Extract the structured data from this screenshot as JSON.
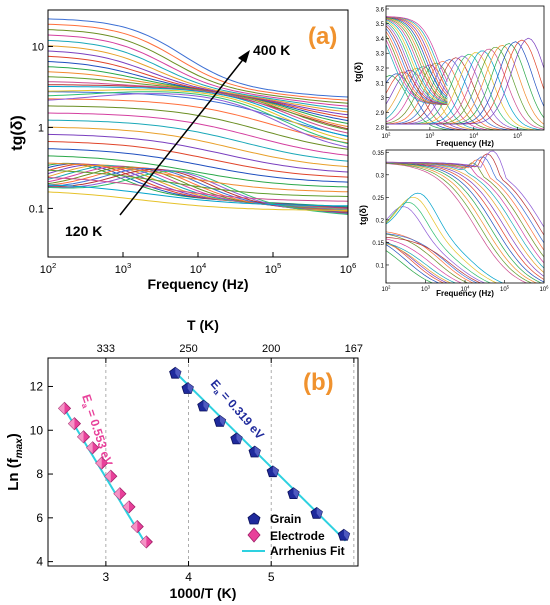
{
  "figure": {
    "panel_a_label": "(a)",
    "panel_b_label": "(b)",
    "label_color": "#f0922e"
  },
  "panel_a_main": {
    "xlabel": "Frequency (Hz)",
    "ylabel": "tg(δ)",
    "x_ticks": [
      {
        "v": 2,
        "b": "10",
        "e": "2"
      },
      {
        "v": 3,
        "b": "10",
        "e": "3"
      },
      {
        "v": 4,
        "b": "10",
        "e": "4"
      },
      {
        "v": 5,
        "b": "10",
        "e": "5"
      },
      {
        "v": 6,
        "b": "10",
        "e": "6"
      }
    ],
    "y_ticks": [
      {
        "v": -1,
        "t": "0.1"
      },
      {
        "v": 0,
        "t": "1"
      },
      {
        "v": 1,
        "t": "10"
      }
    ],
    "annotation_high": "400 K",
    "annotation_low": "120 K"
  },
  "panel_a_inset_top": {
    "xlabel": "Frequency (Hz)",
    "ylabel": "tg(δ)",
    "y_ticks": [
      "2.8",
      "2.9",
      "3",
      "3.1",
      "3.2",
      "3.3",
      "3.4",
      "3.5",
      "3.6"
    ],
    "x_ticks": [
      {
        "v": 2,
        "b": "10",
        "e": "2"
      },
      {
        "v": 3,
        "b": "10",
        "e": "3"
      },
      {
        "v": 4,
        "b": "10",
        "e": "4"
      },
      {
        "v": 5,
        "b": "10",
        "e": "5"
      }
    ]
  },
  "panel_a_inset_bottom": {
    "xlabel": "Frequency (Hz)",
    "ylabel": "tg(δ)",
    "y_ticks": [
      "0.1",
      "0.15",
      "0.2",
      "0.25",
      "0.3",
      "0.35"
    ],
    "x_ticks": [
      {
        "v": 2,
        "b": "10",
        "e": "2"
      },
      {
        "v": 3,
        "b": "10",
        "e": "3"
      },
      {
        "v": 4,
        "b": "10",
        "e": "4"
      },
      {
        "v": 5,
        "b": "10",
        "e": "5"
      },
      {
        "v": 6,
        "b": "10",
        "e": "6"
      }
    ]
  },
  "chart_data": {
    "type": "scatter",
    "xlabel": "1000/T (K)",
    "ylabel": "Ln (f",
    "ylabel_sub": "max",
    "ylabel_close": ")",
    "top_axis_label": "T (K)",
    "top_ticks": [
      "333",
      "250",
      "200",
      "167"
    ],
    "top_tick_positions": [
      3.0,
      4.0,
      5.0,
      6.0
    ],
    "x_ticks": [
      "3",
      "4",
      "5"
    ],
    "y_ticks": [
      "4",
      "6",
      "8",
      "10",
      "12"
    ],
    "xlim": [
      2.3,
      6.05
    ],
    "ylim": [
      3.8,
      13.3
    ],
    "grid": "dashed vertical lines at top-axis ticks",
    "legend_position": "bottom-right",
    "series": [
      {
        "name": "Grain",
        "marker": "pentagon",
        "color": "#1f2a9c",
        "x": [
          3.84,
          3.99,
          4.18,
          4.38,
          4.58,
          4.8,
          5.02,
          5.27,
          5.55,
          5.88
        ],
        "y": [
          12.6,
          11.9,
          11.1,
          10.4,
          9.6,
          9.0,
          8.1,
          7.1,
          6.2,
          5.2
        ]
      },
      {
        "name": "Electrode",
        "marker": "diamond",
        "color": "#e8409a",
        "x": [
          2.5,
          2.62,
          2.73,
          2.84,
          2.95,
          3.06,
          3.17,
          3.28,
          3.38,
          3.49
        ],
        "y": [
          11.0,
          10.3,
          9.7,
          9.2,
          8.5,
          7.9,
          7.1,
          6.5,
          5.6,
          4.9
        ]
      },
      {
        "name": "Arrhenius Fit",
        "type": "line",
        "color": "#2ed1e0",
        "segments": [
          {
            "x": [
              3.84,
              5.9
            ],
            "y": [
              12.65,
              4.95
            ]
          },
          {
            "x": [
              2.48,
              3.5
            ],
            "y": [
              11.1,
              4.7
            ]
          }
        ]
      }
    ],
    "annotations": [
      {
        "text": "E",
        "sub": "a",
        "rest": " = 0.319 eV",
        "color": "#1f2a9c"
      },
      {
        "text": "E",
        "sub": "a",
        "rest": " = 0.553 eV",
        "color": "#e8409a"
      }
    ]
  }
}
